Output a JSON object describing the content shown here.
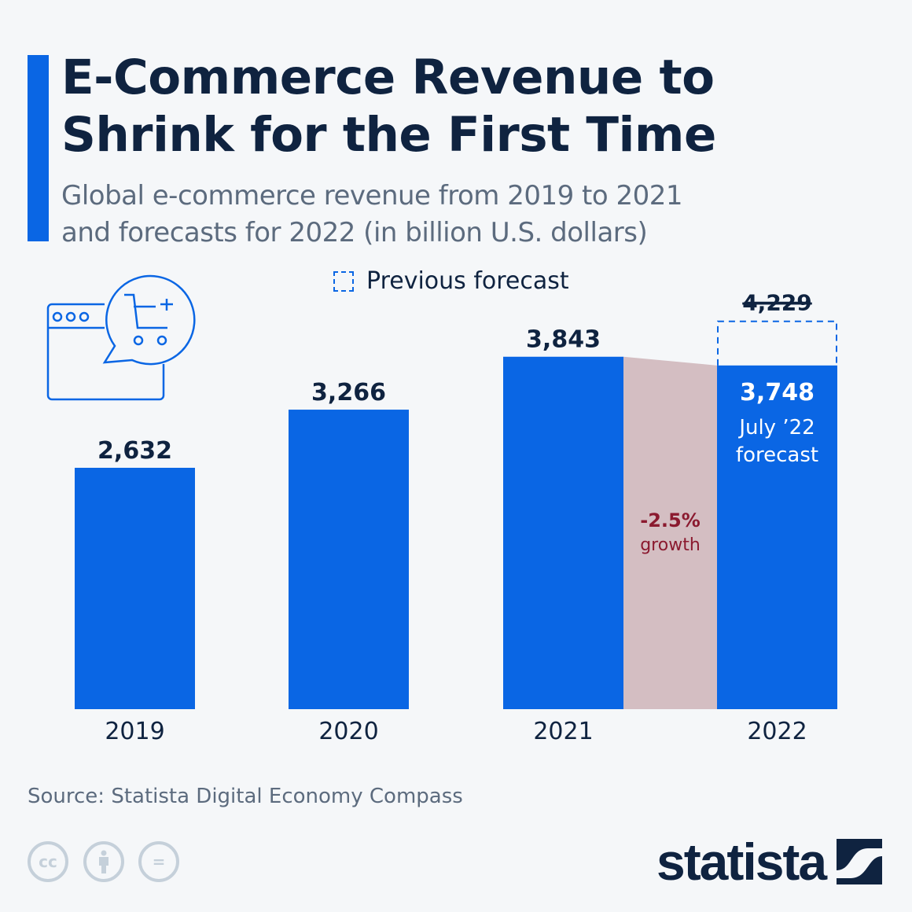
{
  "title_lines": [
    "E-Commerce Revenue to",
    "Shrink for the First Time"
  ],
  "subtitle_lines": [
    "Global e-commerce revenue from 2019 to 2021",
    "and forecasts for 2022 (in billion U.S. dollars)"
  ],
  "legend": {
    "previous_forecast": "Previous forecast"
  },
  "source": "Source: Statista Digital Economy Compass",
  "logo": "statista",
  "license_icons": [
    "cc",
    "by",
    "nd"
  ],
  "colors": {
    "bar": "#0a66e4",
    "growth_band": "#d4bec2",
    "growth_text": "#8b1a2f",
    "text": "#0f2340"
  },
  "chart_data": {
    "type": "bar",
    "categories": [
      "2019",
      "2020",
      "2021",
      "2022"
    ],
    "values": [
      2632,
      3266,
      3843,
      3748
    ],
    "value_labels": [
      "2,632",
      "3,266",
      "3,843",
      "3,748"
    ],
    "previous_forecast": {
      "category": "2022",
      "value": 4229,
      "label": "4,229"
    },
    "forecast_note": [
      "July ’22",
      "forecast"
    ],
    "growth": {
      "value": "-2.5%",
      "label": "growth"
    },
    "ylim": [
      0,
      4229
    ]
  }
}
